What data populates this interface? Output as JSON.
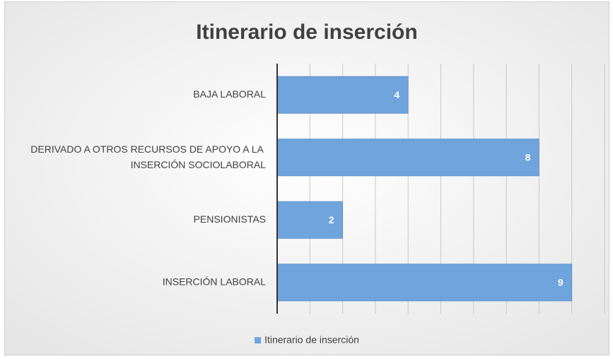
{
  "chart_data": {
    "type": "barh",
    "title": "Itinerario de inserción",
    "categories": [
      "BAJA LABORAL",
      "DERIVADO A OTROS RECURSOS DE APOYO A LA INSERCIÓN SOCIOLABORAL",
      "PENSIONISTAS",
      "INSERCIÓN LABORAL"
    ],
    "series": [
      {
        "name": "Itinerario de inserción",
        "color": "#6fa4dc",
        "values": [
          4,
          8,
          2,
          9
        ]
      }
    ],
    "xlim": [
      0,
      10
    ],
    "xticks": [
      0,
      1,
      2,
      3,
      4,
      5,
      6,
      7,
      8,
      9,
      10
    ],
    "show_tick_labels": false,
    "grid": true,
    "legend": "bottom"
  }
}
